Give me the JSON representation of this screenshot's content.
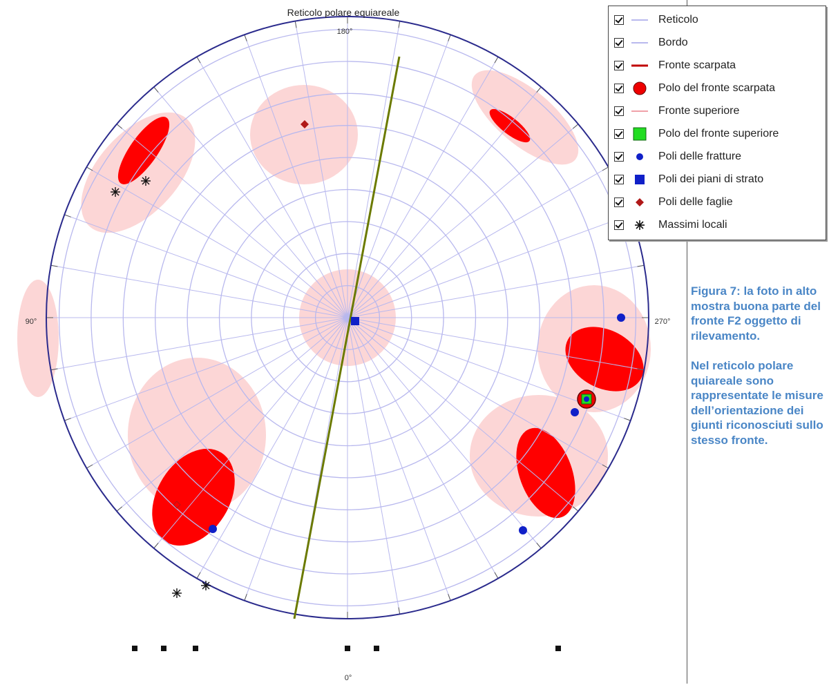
{
  "chart": {
    "title": "Reticolo polare equiareale",
    "orientation_labels": {
      "top": "180°",
      "bottom": "0°",
      "left": "90°",
      "right": "270°"
    }
  },
  "legend": {
    "items": [
      {
        "label": "Reticolo",
        "symbol": "line-light-blue"
      },
      {
        "label": "Bordo",
        "symbol": "line-light-blue"
      },
      {
        "label": "Fronte scarpata",
        "symbol": "line-dark-red"
      },
      {
        "label": "Polo del fronte scarpata",
        "symbol": "red-circle"
      },
      {
        "label": "Fronte superiore",
        "symbol": "line-pink"
      },
      {
        "label": "Polo del fronte superiore",
        "symbol": "green-square"
      },
      {
        "label": "Poli delle fratture",
        "symbol": "blue-dot"
      },
      {
        "label": "Poli dei piani di strato",
        "symbol": "blue-square"
      },
      {
        "label": "Poli delle faglie",
        "symbol": "red-diamond"
      },
      {
        "label": "Massimi locali",
        "symbol": "asterisk"
      }
    ]
  },
  "caption": {
    "paragraph1": "Figura 7: la foto in alto mostra buona parte del fronte F2 oggetto di rilevamento.",
    "paragraph2": "Nel reticolo polare quiareale sono rappresentate le misure dell’orientazione dei giunti riconosciuti sullo stesso fronte."
  },
  "colors": {
    "grid": "#b8b8ee",
    "border": "#2a2a8c",
    "great_circle": "#6b7a00",
    "density_low": "#fcd6d6",
    "density_high": "#ff0000",
    "caption": "#4a86c6"
  }
}
